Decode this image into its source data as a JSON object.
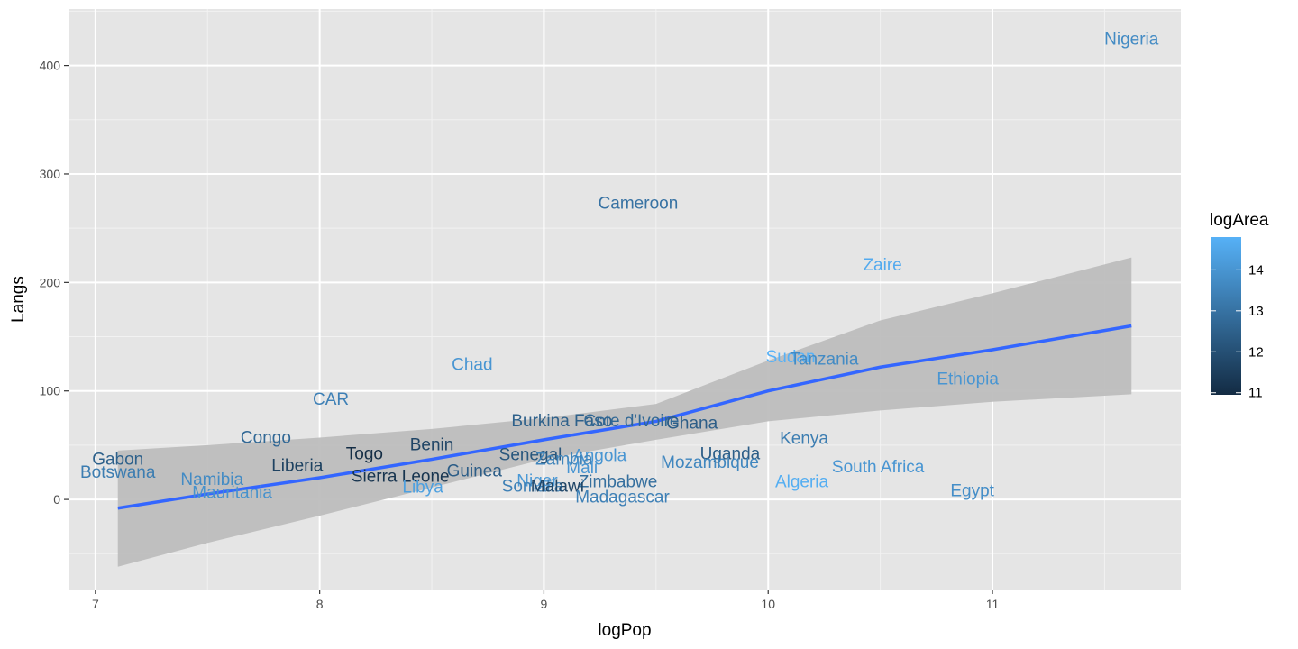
{
  "chart_data": {
    "type": "scatter",
    "subtype": "text-labels-with-linear-fit",
    "xlabel": "logPop",
    "ylabel": "Langs",
    "xlim": [
      6.88,
      11.84
    ],
    "ylim": [
      -83,
      452
    ],
    "x_ticks": [
      7,
      8,
      9,
      10,
      11
    ],
    "y_ticks": [
      0,
      100,
      200,
      300,
      400
    ],
    "grid": true,
    "panel_background": "#e5e5e5",
    "legend": {
      "title": "logArea",
      "position": "right",
      "ticks": [
        11,
        12,
        13,
        14
      ],
      "range": [
        10.95,
        14.8
      ],
      "color_low": "#132b43",
      "color_high": "#56b1f7"
    },
    "points": [
      {
        "label": "Nigeria",
        "x": 11.62,
        "y": 425,
        "color_value": 13.7
      },
      {
        "label": "Cameroon",
        "x": 9.42,
        "y": 274,
        "color_value": 13.0
      },
      {
        "label": "Zaire",
        "x": 10.51,
        "y": 217,
        "color_value": 14.6
      },
      {
        "label": "Chad",
        "x": 8.68,
        "y": 125,
        "color_value": 14.0
      },
      {
        "label": "Sudan",
        "x": 10.1,
        "y": 132,
        "color_value": 14.8
      },
      {
        "label": "Tanzania",
        "x": 10.25,
        "y": 130,
        "color_value": 13.7
      },
      {
        "label": "Ethiopia",
        "x": 10.89,
        "y": 112,
        "color_value": 14.0
      },
      {
        "label": "CAR",
        "x": 8.05,
        "y": 93,
        "color_value": 13.4
      },
      {
        "label": "Burkina Faso",
        "x": 9.08,
        "y": 73,
        "color_value": 12.5
      },
      {
        "label": "Cote d'Ivoire",
        "x": 9.39,
        "y": 73,
        "color_value": 12.7
      },
      {
        "label": "Ghana",
        "x": 9.66,
        "y": 71,
        "color_value": 12.4
      },
      {
        "label": "Congo",
        "x": 7.76,
        "y": 58,
        "color_value": 12.7
      },
      {
        "label": "Kenya",
        "x": 10.16,
        "y": 57,
        "color_value": 13.3
      },
      {
        "label": "Benin",
        "x": 8.5,
        "y": 51,
        "color_value": 11.7
      },
      {
        "label": "Uganda",
        "x": 9.83,
        "y": 43,
        "color_value": 12.4
      },
      {
        "label": "Togo",
        "x": 8.2,
        "y": 43,
        "color_value": 11.0
      },
      {
        "label": "Senegal",
        "x": 8.94,
        "y": 42,
        "color_value": 12.2
      },
      {
        "label": "Angola",
        "x": 9.25,
        "y": 41,
        "color_value": 14.0
      },
      {
        "label": "Zambia",
        "x": 9.09,
        "y": 38,
        "color_value": 13.5
      },
      {
        "label": "Gabon",
        "x": 7.1,
        "y": 38,
        "color_value": 12.5
      },
      {
        "label": "Mozambique",
        "x": 9.74,
        "y": 35,
        "color_value": 13.6
      },
      {
        "label": "Liberia",
        "x": 7.9,
        "y": 32,
        "color_value": 11.6
      },
      {
        "label": "Mali",
        "x": 9.17,
        "y": 30,
        "color_value": 14.0
      },
      {
        "label": "South Africa",
        "x": 10.49,
        "y": 31,
        "color_value": 14.0
      },
      {
        "label": "Botswana",
        "x": 7.1,
        "y": 26,
        "color_value": 13.3
      },
      {
        "label": "Sierra Leone",
        "x": 8.36,
        "y": 22,
        "color_value": 11.2
      },
      {
        "label": "Guinea",
        "x": 8.69,
        "y": 27,
        "color_value": 12.4
      },
      {
        "label": "Namibia",
        "x": 7.52,
        "y": 19,
        "color_value": 13.7
      },
      {
        "label": "Niger",
        "x": 8.97,
        "y": 18,
        "color_value": 14.1
      },
      {
        "label": "Zimbabwe",
        "x": 9.33,
        "y": 17,
        "color_value": 12.9
      },
      {
        "label": "Algeria",
        "x": 10.15,
        "y": 17,
        "color_value": 14.7
      },
      {
        "label": "Libya",
        "x": 8.46,
        "y": 12,
        "color_value": 14.3
      },
      {
        "label": "Somalia",
        "x": 8.95,
        "y": 13,
        "color_value": 13.4
      },
      {
        "label": "Malawi",
        "x": 9.06,
        "y": 13,
        "color_value": 11.7
      },
      {
        "label": "Egypt",
        "x": 10.91,
        "y": 9,
        "color_value": 13.8
      },
      {
        "label": "Mauritania",
        "x": 7.61,
        "y": 7,
        "color_value": 13.9
      },
      {
        "label": "Madagascar",
        "x": 9.35,
        "y": 3,
        "color_value": 13.4
      }
    ],
    "fit": {
      "method": "lm",
      "color": "#3366ff",
      "ribbon_color": "#bdbdbd",
      "points": [
        {
          "x": 7.1,
          "y": -8,
          "lo": -62,
          "hi": 45
        },
        {
          "x": 7.5,
          "y": 5,
          "lo": -40,
          "hi": 50
        },
        {
          "x": 8.0,
          "y": 20,
          "lo": -15,
          "hi": 57
        },
        {
          "x": 8.5,
          "y": 37,
          "lo": 11,
          "hi": 65
        },
        {
          "x": 9.0,
          "y": 55,
          "lo": 37,
          "hi": 75
        },
        {
          "x": 9.5,
          "y": 72,
          "lo": 55,
          "hi": 88
        },
        {
          "x": 10.0,
          "y": 100,
          "lo": 72,
          "hi": 128
        },
        {
          "x": 10.5,
          "y": 122,
          "lo": 82,
          "hi": 165
        },
        {
          "x": 11.0,
          "y": 138,
          "lo": 90,
          "hi": 190
        },
        {
          "x": 11.62,
          "y": 160,
          "lo": 97,
          "hi": 223
        }
      ]
    }
  }
}
